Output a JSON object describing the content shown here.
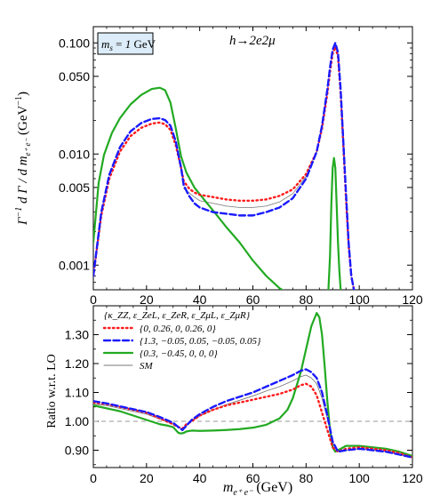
{
  "chart_data": [
    {
      "type": "line",
      "panel": "top",
      "title": "h→2e2μ",
      "annotation": "m = 1 GeV",
      "annotation_sub": "s",
      "ylabel": "Γ⁻¹ dΓ / d m (GeV⁻¹)",
      "ylabel_sub": "e⁺ e⁻",
      "yscale": "log",
      "xlim": [
        0,
        120
      ],
      "ylim": [
        0.0006,
        0.14
      ],
      "x_ticks": [
        "0",
        "20",
        "40",
        "60",
        "80",
        "100",
        "120"
      ],
      "y_ticks": [
        {
          "v": 0.1,
          "label": "0.100"
        },
        {
          "v": 0.05,
          "label": "0.050"
        },
        {
          "v": 0.01,
          "label": "0.010"
        },
        {
          "v": 0.005,
          "label": "0.005"
        },
        {
          "v": 0.001,
          "label": "0.001"
        }
      ],
      "series": [
        {
          "color": "#ff1a1a",
          "style": "dotted",
          "x": [
            0,
            3,
            6,
            10,
            14,
            18,
            22,
            25,
            27,
            29,
            31,
            33,
            34,
            36,
            38,
            40,
            45,
            50,
            55,
            60,
            65,
            70,
            75,
            80,
            84,
            86,
            88,
            89,
            90,
            91,
            92,
            93,
            94,
            95,
            96,
            97,
            98
          ],
          "y": [
            0.0008,
            0.0028,
            0.006,
            0.0105,
            0.0145,
            0.0172,
            0.0188,
            0.0192,
            0.0185,
            0.0165,
            0.012,
            0.0075,
            0.0057,
            0.0049,
            0.0045,
            0.0043,
            0.0041,
            0.0039,
            0.0038,
            0.0038,
            0.0039,
            0.0042,
            0.0048,
            0.0066,
            0.0105,
            0.017,
            0.035,
            0.055,
            0.08,
            0.092,
            0.075,
            0.035,
            0.012,
            0.004,
            0.0015,
            0.0008,
            0.0006
          ]
        },
        {
          "color": "#1a1aff",
          "style": "dashed",
          "x": [
            0,
            3,
            6,
            10,
            14,
            18,
            22,
            25,
            27,
            29,
            31,
            33,
            34,
            36,
            38,
            40,
            45,
            50,
            55,
            60,
            65,
            70,
            75,
            80,
            84,
            86,
            88,
            89,
            90,
            91,
            92,
            93,
            94,
            95,
            96,
            97,
            98
          ],
          "y": [
            0.0008,
            0.003,
            0.0065,
            0.0115,
            0.016,
            0.019,
            0.0207,
            0.021,
            0.0202,
            0.018,
            0.013,
            0.0075,
            0.0052,
            0.0042,
            0.0036,
            0.0033,
            0.003,
            0.0029,
            0.0028,
            0.0028,
            0.003,
            0.0033,
            0.004,
            0.006,
            0.0105,
            0.018,
            0.038,
            0.06,
            0.087,
            0.1,
            0.082,
            0.038,
            0.013,
            0.0045,
            0.0016,
            0.0008,
            0.0006
          ]
        },
        {
          "color": "#22aa22",
          "style": "solid",
          "x": [
            0,
            2,
            4,
            7,
            10,
            14,
            18,
            22,
            25,
            27,
            29,
            31,
            33,
            35,
            38,
            42,
            46,
            50,
            55,
            60,
            65,
            70,
            72
          ],
          "y": [
            0.0016,
            0.0055,
            0.0098,
            0.0155,
            0.021,
            0.028,
            0.034,
            0.0385,
            0.0395,
            0.0375,
            0.029,
            0.017,
            0.0095,
            0.0068,
            0.005,
            0.0038,
            0.0029,
            0.0022,
            0.0016,
            0.0011,
            0.0008,
            0.00062,
            0.00058
          ]
        },
        {
          "color": "#22aa22",
          "style": "solid",
          "x": [
            88.4,
            89,
            89.5,
            90,
            90.5,
            91,
            91.5,
            92,
            92.5,
            93,
            93.5
          ],
          "y": [
            0.0006,
            0.0012,
            0.0035,
            0.0075,
            0.0092,
            0.0075,
            0.0035,
            0.0016,
            0.0009,
            0.0006,
            0.0005
          ]
        },
        {
          "color": "#888888",
          "style": "thin",
          "x": [
            34,
            38,
            40,
            45,
            50,
            55,
            60,
            65,
            70,
            75,
            80,
            84
          ],
          "y": [
            0.0049,
            0.0041,
            0.0038,
            0.0036,
            0.0034,
            0.0033,
            0.0033,
            0.0034,
            0.0037,
            0.0044,
            0.0063,
            0.0105
          ]
        }
      ]
    },
    {
      "type": "line",
      "panel": "bottom",
      "ylabel": "Ratio w.r.t. LO",
      "xlabel": "m (GeV)",
      "xlabel_sub": "e⁺ e⁻",
      "xlim": [
        0,
        120
      ],
      "ylim": [
        0.84,
        1.4
      ],
      "x_ticks": [
        "0",
        "20",
        "40",
        "60",
        "80",
        "100",
        "120"
      ],
      "y_ticks": [
        "0.90",
        "1.00",
        "1.10",
        "1.20",
        "1.30"
      ],
      "legend_header": "{κ_ZZ, ε_ZeL, ε_ZeR, ε_ZμL, ε_ZμR}",
      "reference_line": 1.0,
      "series": [
        {
          "name": "{0, 0.26, 0, 0.26, 0}",
          "color": "#ff1a1a",
          "style": "dotted",
          "x": [
            0,
            5,
            10,
            15,
            20,
            25,
            30,
            32,
            33.5,
            35,
            37,
            40,
            45,
            50,
            55,
            60,
            65,
            70,
            75,
            78,
            80,
            82,
            84,
            86,
            88,
            90,
            92,
            95,
            100,
            105,
            110,
            115,
            120
          ],
          "y": [
            1.065,
            1.06,
            1.05,
            1.04,
            1.03,
            1.01,
            0.99,
            0.98,
            0.975,
            0.99,
            1.0,
            1.02,
            1.04,
            1.055,
            1.065,
            1.075,
            1.085,
            1.095,
            1.11,
            1.125,
            1.13,
            1.12,
            1.09,
            1.03,
            0.97,
            0.91,
            0.895,
            0.905,
            0.91,
            0.905,
            0.9,
            0.89,
            0.875
          ]
        },
        {
          "name": "{1.3, −0.05, 0.05, −0.05, 0.05}",
          "color": "#1a1aff",
          "style": "dashed",
          "x": [
            0,
            5,
            10,
            15,
            20,
            25,
            30,
            32,
            33.5,
            35,
            37,
            40,
            45,
            50,
            55,
            60,
            65,
            70,
            75,
            78,
            80,
            82,
            84,
            86,
            88,
            90,
            92,
            95,
            100,
            105,
            110,
            115,
            120
          ],
          "y": [
            1.07,
            1.062,
            1.052,
            1.042,
            1.032,
            1.015,
            0.995,
            0.98,
            0.97,
            0.985,
            1.005,
            1.025,
            1.05,
            1.07,
            1.085,
            1.1,
            1.12,
            1.14,
            1.16,
            1.175,
            1.18,
            1.17,
            1.15,
            1.1,
            1.02,
            0.93,
            0.895,
            0.9,
            0.905,
            0.9,
            0.895,
            0.885,
            0.875
          ]
        },
        {
          "name": "{0.3, −0.45, 0, 0, 0}",
          "color": "#22aa22",
          "style": "solid",
          "x": [
            0,
            5,
            10,
            15,
            20,
            25,
            28,
            30,
            32,
            33,
            34,
            35,
            37,
            40,
            45,
            50,
            55,
            60,
            65,
            70,
            73,
            75,
            78,
            80,
            82,
            84,
            85,
            86,
            87,
            88,
            89,
            90,
            91,
            92,
            95,
            100,
            105,
            110,
            115,
            120
          ],
          "y": [
            1.055,
            1.045,
            1.035,
            1.02,
            1.005,
            0.99,
            0.985,
            0.98,
            0.96,
            0.958,
            0.96,
            0.965,
            0.968,
            0.967,
            0.968,
            0.97,
            0.973,
            0.978,
            0.988,
            1.01,
            1.04,
            1.08,
            1.17,
            1.25,
            1.33,
            1.375,
            1.36,
            1.3,
            1.19,
            1.07,
            0.97,
            0.91,
            0.895,
            0.9,
            0.915,
            0.915,
            0.91,
            0.905,
            0.895,
            0.88
          ]
        },
        {
          "name": "SM",
          "color": "#777777",
          "style": "thin",
          "x": [
            0,
            5,
            10,
            15,
            20,
            25,
            30,
            32,
            33.5,
            35,
            37,
            40,
            45,
            50,
            55,
            60,
            65,
            70,
            75,
            78,
            80,
            82,
            84,
            86,
            88,
            90,
            92,
            95,
            100,
            105,
            110,
            115,
            120
          ],
          "y": [
            1.06,
            1.055,
            1.045,
            1.035,
            1.025,
            1.008,
            0.99,
            0.98,
            0.972,
            0.985,
            1.0,
            1.018,
            1.04,
            1.058,
            1.073,
            1.088,
            1.105,
            1.12,
            1.14,
            1.155,
            1.16,
            1.15,
            1.13,
            1.08,
            1.01,
            0.925,
            0.895,
            0.9,
            0.905,
            0.9,
            0.895,
            0.885,
            0.875
          ]
        }
      ]
    }
  ]
}
